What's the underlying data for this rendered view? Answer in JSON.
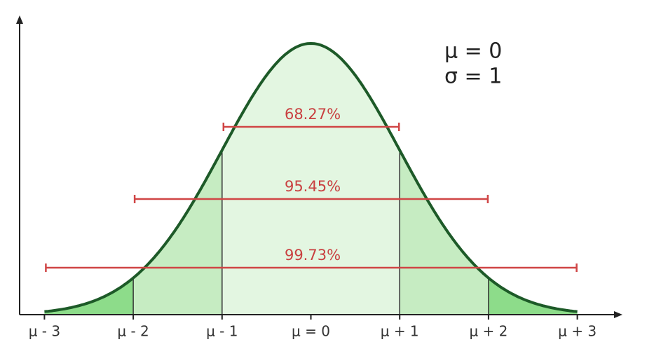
{
  "parameters": [
    "μ = 0",
    "σ = 1"
  ],
  "intervals": [
    "68.27%",
    "95.45%",
    "99.73%"
  ],
  "axis_labels": [
    "μ - 3",
    "μ - 2",
    "μ - 1",
    "μ = 0",
    "μ + 1",
    "μ + 2",
    "μ + 3"
  ]
}
